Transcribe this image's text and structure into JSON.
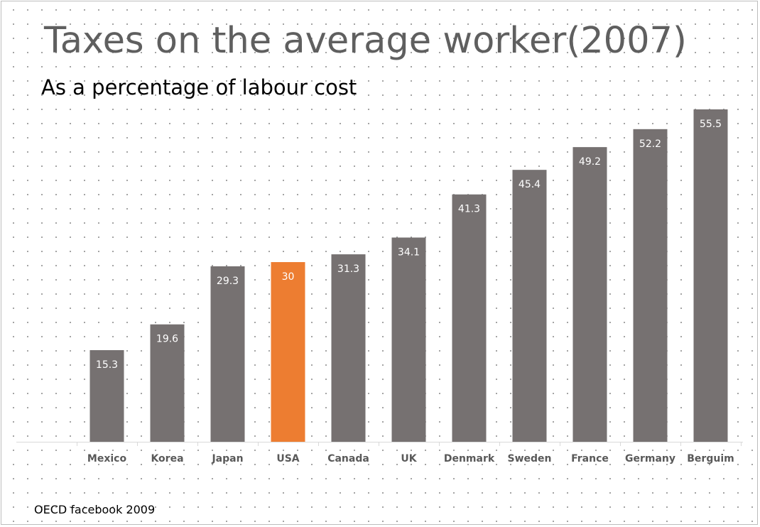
{
  "title": "Taxes on the average worker(2007)",
  "subtitle": "As a percentage of labour cost",
  "source": "OECD facebook 2009",
  "colors": {
    "bar": "#767171",
    "highlight": "#ed7d31",
    "label": "#ffffff",
    "tick": "#595959",
    "axis": "#d9d9d9"
  },
  "chart_data": {
    "type": "bar",
    "title": "Taxes on the average worker(2007)",
    "subtitle": "As a percentage of labour cost",
    "xlabel": "",
    "ylabel": "",
    "ylim": [
      0,
      60
    ],
    "grid": false,
    "legend": "none",
    "highlight_category": "USA",
    "categories": [
      "Mexico",
      "Korea",
      "Japan",
      "USA",
      "Canada",
      "UK",
      "Denmark",
      "Sweden",
      "France",
      "Germany",
      "Berguim"
    ],
    "values": [
      15.3,
      19.6,
      29.3,
      30,
      31.3,
      34.1,
      41.3,
      45.4,
      49.2,
      52.2,
      55.5
    ],
    "data_labels": [
      "15.3",
      "19.6",
      "29.3",
      "30",
      "31.3",
      "34.1",
      "41.3",
      "45.4",
      "49.2",
      "52.2",
      "55.5"
    ]
  }
}
